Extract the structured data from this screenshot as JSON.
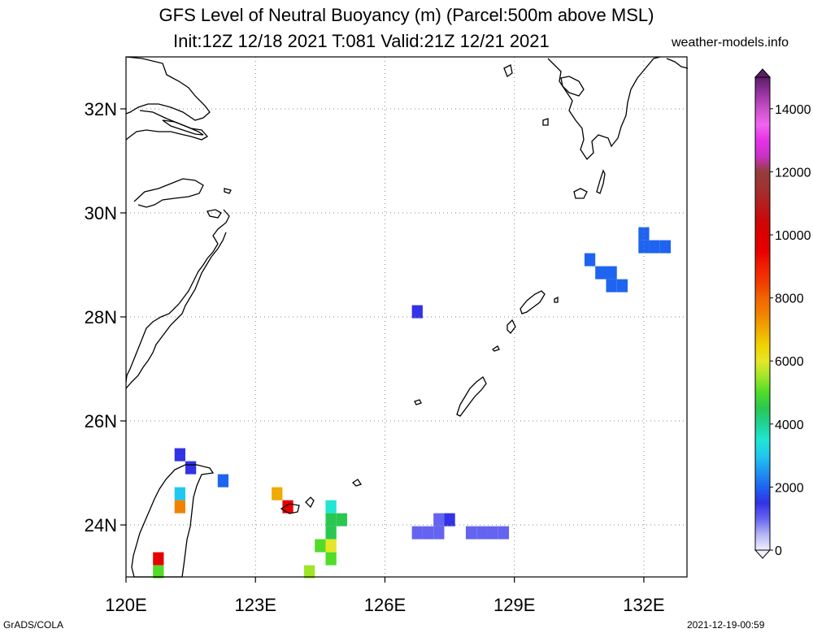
{
  "title": "GFS Level of Neutral Buoyancy (m) (Parcel:500m above MSL)",
  "subtitle": "Init:12Z 12/18 2021 T:081 Valid:21Z 12/21 2021",
  "site": "weather-models.info",
  "footer_left": "GrADS/COLA",
  "footer_right": "2021-12-19-00:59",
  "map": {
    "lon_range": [
      120,
      133
    ],
    "lat_range": [
      23,
      33
    ],
    "lon_ticks": [
      {
        "value": 120,
        "label": "120E"
      },
      {
        "value": 123,
        "label": "123E"
      },
      {
        "value": 126,
        "label": "126E"
      },
      {
        "value": 129,
        "label": "129E"
      },
      {
        "value": 132,
        "label": "132E"
      }
    ],
    "lat_ticks": [
      {
        "value": 24,
        "label": "24N"
      },
      {
        "value": 26,
        "label": "26N"
      },
      {
        "value": 28,
        "label": "28N"
      },
      {
        "value": 30,
        "label": "30N"
      },
      {
        "value": 32,
        "label": "32N"
      }
    ],
    "cells": [
      {
        "lon": 121.25,
        "lat": 25.35,
        "v": 1700
      },
      {
        "lon": 121.5,
        "lat": 25.1,
        "v": 1600
      },
      {
        "lon": 122.25,
        "lat": 24.85,
        "v": 2100
      },
      {
        "lon": 121.25,
        "lat": 24.6,
        "v": 3200
      },
      {
        "lon": 121.25,
        "lat": 24.35,
        "v": 7800
      },
      {
        "lon": 120.75,
        "lat": 23.35,
        "v": 9500
      },
      {
        "lon": 120.75,
        "lat": 23.1,
        "v": 5200
      },
      {
        "lon": 123.5,
        "lat": 24.6,
        "v": 7000
      },
      {
        "lon": 123.75,
        "lat": 24.35,
        "v": 9800
      },
      {
        "lon": 124.75,
        "lat": 24.35,
        "v": 3800
      },
      {
        "lon": 124.75,
        "lat": 24.1,
        "v": 4500
      },
      {
        "lon": 125.0,
        "lat": 24.1,
        "v": 4800
      },
      {
        "lon": 124.75,
        "lat": 23.85,
        "v": 4900
      },
      {
        "lon": 124.5,
        "lat": 23.6,
        "v": 5000
      },
      {
        "lon": 124.75,
        "lat": 23.6,
        "v": 6200
      },
      {
        "lon": 124.75,
        "lat": 23.35,
        "v": 5300
      },
      {
        "lon": 124.25,
        "lat": 23.1,
        "v": 5600
      },
      {
        "lon": 126.75,
        "lat": 28.1,
        "v": 1500
      },
      {
        "lon": 126.75,
        "lat": 23.85,
        "v": 1400
      },
      {
        "lon": 127.0,
        "lat": 23.85,
        "v": 1350
      },
      {
        "lon": 127.25,
        "lat": 23.85,
        "v": 1400
      },
      {
        "lon": 127.25,
        "lat": 24.1,
        "v": 1450
      },
      {
        "lon": 127.5,
        "lat": 24.1,
        "v": 1500
      },
      {
        "lon": 128.0,
        "lat": 23.85,
        "v": 1400
      },
      {
        "lon": 128.25,
        "lat": 23.85,
        "v": 1350
      },
      {
        "lon": 128.5,
        "lat": 23.85,
        "v": 1400
      },
      {
        "lon": 128.75,
        "lat": 23.85,
        "v": 1450
      },
      {
        "lon": 130.75,
        "lat": 29.1,
        "v": 2100
      },
      {
        "lon": 131.0,
        "lat": 28.85,
        "v": 2100
      },
      {
        "lon": 131.25,
        "lat": 28.85,
        "v": 2100
      },
      {
        "lon": 131.25,
        "lat": 28.6,
        "v": 2100
      },
      {
        "lon": 131.5,
        "lat": 28.6,
        "v": 2100
      },
      {
        "lon": 132.0,
        "lat": 29.6,
        "v": 2100
      },
      {
        "lon": 132.0,
        "lat": 29.35,
        "v": 2100
      },
      {
        "lon": 132.25,
        "lat": 29.35,
        "v": 2100
      },
      {
        "lon": 132.5,
        "lat": 29.35,
        "v": 2100
      }
    ]
  },
  "colorbar": {
    "range": [
      0,
      15000
    ],
    "tick_labels": [
      "0",
      "2000",
      "4000",
      "6000",
      "8000",
      "10000",
      "12000",
      "14000"
    ],
    "stops": [
      {
        "v": 0,
        "c": "#f0f0ff"
      },
      {
        "v": 500,
        "c": "#b4b4f5"
      },
      {
        "v": 1000,
        "c": "#6464f0"
      },
      {
        "v": 1500,
        "c": "#3232e6"
      },
      {
        "v": 2000,
        "c": "#1e64f0"
      },
      {
        "v": 2500,
        "c": "#1e96f0"
      },
      {
        "v": 3000,
        "c": "#20c8f0"
      },
      {
        "v": 3500,
        "c": "#20e6d2"
      },
      {
        "v": 4000,
        "c": "#20d296"
      },
      {
        "v": 4500,
        "c": "#28c850"
      },
      {
        "v": 5000,
        "c": "#50dc28"
      },
      {
        "v": 5500,
        "c": "#a0e628"
      },
      {
        "v": 6000,
        "c": "#e6e628"
      },
      {
        "v": 6500,
        "c": "#f0d200"
      },
      {
        "v": 7000,
        "c": "#f0aa00"
      },
      {
        "v": 7500,
        "c": "#f08200"
      },
      {
        "v": 8000,
        "c": "#f06400"
      },
      {
        "v": 8500,
        "c": "#f03c00"
      },
      {
        "v": 9000,
        "c": "#f01e00"
      },
      {
        "v": 9500,
        "c": "#e60000"
      },
      {
        "v": 10000,
        "c": "#dc0000"
      },
      {
        "v": 10500,
        "c": "#c80a0a"
      },
      {
        "v": 11000,
        "c": "#b41e1e"
      },
      {
        "v": 11500,
        "c": "#a03232"
      },
      {
        "v": 12000,
        "c": "#963c3c"
      },
      {
        "v": 12500,
        "c": "#c832c8"
      },
      {
        "v": 13000,
        "c": "#e632e6"
      },
      {
        "v": 13500,
        "c": "#f064f0"
      },
      {
        "v": 14000,
        "c": "#c850c8"
      },
      {
        "v": 14500,
        "c": "#9632a0"
      },
      {
        "v": 15000,
        "c": "#5a1e64"
      }
    ]
  }
}
